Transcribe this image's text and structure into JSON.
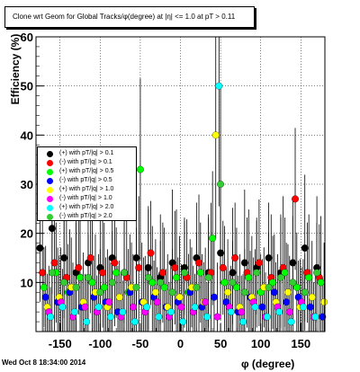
{
  "title": "Clone wrt Geom for Global Tracks/φ(degree) at |η| <= 1.0 at pT > 0.11",
  "timestamp": "Wed Oct  8 18:34:00 2014",
  "chart_data": {
    "type": "scatter",
    "xlabel": "φ (degree)",
    "ylabel": "Efficiency (%)",
    "xlim": [
      -180,
      180
    ],
    "ylim": [
      0,
      60
    ],
    "grid": true,
    "legend_position": "left-middle",
    "x_ticks": [
      "-150",
      "-100",
      "-50",
      "0",
      "50",
      "100",
      "150"
    ],
    "y_ticks": [
      "10",
      "20",
      "30",
      "40",
      "50",
      "60"
    ],
    "series": [
      {
        "name": "(+) with pT/|q| > 0.1",
        "color": "#000000",
        "x": [
          -175,
          -160,
          -145,
          -130,
          -115,
          -100,
          -85,
          -70,
          -55,
          -40,
          -25,
          -10,
          5,
          20,
          35,
          50,
          65,
          80,
          95,
          110,
          125,
          140,
          155,
          170
        ],
        "y": [
          17,
          21,
          15,
          12,
          14,
          13,
          15,
          12,
          15,
          13,
          11,
          14,
          13,
          15,
          12,
          16,
          12,
          14,
          13,
          15,
          12,
          14,
          17,
          13
        ]
      },
      {
        "name": "(-) with pT/|q| > 0.1",
        "color": "#ff0000",
        "x": [
          -172,
          -157,
          -142,
          -127,
          -112,
          -97,
          -82,
          -67,
          -52,
          -37,
          -22,
          -7,
          8,
          23,
          38,
          53,
          68,
          83,
          98,
          113,
          128,
          143,
          158,
          173
        ],
        "y": [
          12,
          14,
          11,
          13,
          15,
          12,
          14,
          11,
          13,
          16,
          12,
          13,
          11,
          14,
          12,
          13,
          15,
          12,
          14,
          11,
          13,
          27,
          12,
          11
        ]
      },
      {
        "name": "(+) with pT/|q| > 0.5",
        "color": "#00ff00",
        "x": [
          -170,
          -155,
          -140,
          -125,
          -110,
          -95,
          -80,
          -65,
          -50,
          -35,
          -20,
          -5,
          10,
          25,
          40,
          55,
          70,
          85,
          100,
          115,
          130,
          145,
          160,
          175
        ],
        "y": [
          9,
          12,
          8,
          11,
          10,
          9,
          12,
          8,
          33,
          10,
          9,
          11,
          8,
          12,
          19,
          10,
          9,
          11,
          8,
          10,
          12,
          9,
          11,
          10
        ]
      },
      {
        "name": "(-) with pT/|q| > 0.5",
        "color": "#0000ff",
        "x": [
          -168,
          -153,
          -138,
          -123,
          -108,
          -93,
          -78,
          -63,
          -48,
          -33,
          -18,
          -3,
          12,
          27,
          42,
          57,
          72,
          87,
          102,
          117,
          132,
          147,
          162,
          177
        ],
        "y": [
          7,
          6,
          8,
          5,
          7,
          6,
          4,
          8,
          6,
          7,
          5,
          6,
          8,
          5,
          7,
          6,
          4,
          7,
          5,
          8,
          6,
          7,
          5,
          3
        ]
      },
      {
        "name": "(+) with pT/|q| > 1.0",
        "color": "#ffff00",
        "x": [
          -166,
          -151,
          -136,
          -121,
          -106,
          -91,
          -76,
          -61,
          -46,
          -31,
          -16,
          -1,
          14,
          29,
          44,
          59,
          74,
          89,
          104,
          119,
          134,
          149,
          164,
          179
        ],
        "y": [
          5,
          7,
          9,
          6,
          8,
          5,
          7,
          9,
          6,
          8,
          5,
          7,
          9,
          6,
          40,
          8,
          5,
          7,
          9,
          6,
          8,
          5,
          7,
          6
        ]
      },
      {
        "name": "(-) with pT/|q| > 1.0",
        "color": "#ff00ff",
        "x": [
          -164,
          -149,
          -134,
          -119,
          -104,
          -89,
          -74,
          -59,
          -44,
          -29,
          -14,
          1,
          16,
          31,
          46,
          61,
          76,
          91,
          106,
          121,
          136,
          151,
          166
        ],
        "y": [
          4,
          6,
          3,
          5,
          4,
          6,
          3,
          5,
          4,
          6,
          3,
          5,
          4,
          6,
          3,
          5,
          4,
          6,
          3,
          5,
          4,
          6,
          3
        ]
      },
      {
        "name": "(+) with pT/|q| > 2.0",
        "color": "#00ffff",
        "x": [
          -162,
          -147,
          -132,
          -117,
          -102,
          -87,
          -72,
          -57,
          -42,
          -27,
          -12,
          3,
          18,
          33,
          48,
          63,
          78,
          93,
          108,
          123,
          138,
          153,
          168
        ],
        "y": [
          3,
          5,
          4,
          2,
          5,
          3,
          4,
          2,
          5,
          3,
          4,
          2,
          5,
          3,
          50,
          4,
          2,
          5,
          3,
          4,
          2,
          5,
          3
        ]
      },
      {
        "name": "(-) with pT/|q| > 2.0",
        "color": "#33cc33",
        "x": [
          -160,
          -145,
          -130,
          -115,
          -100,
          -85,
          -70,
          -55,
          -40,
          -25,
          -10,
          5,
          20,
          35,
          50,
          65,
          80,
          95,
          110,
          125,
          140,
          155,
          170
        ],
        "y": [
          12,
          10,
          9,
          11,
          8,
          10,
          12,
          9,
          11,
          10,
          8,
          12,
          9,
          11,
          30,
          10,
          8,
          12,
          9,
          11,
          10,
          8,
          12
        ]
      }
    ]
  }
}
